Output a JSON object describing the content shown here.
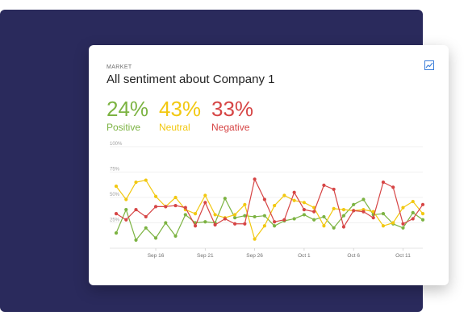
{
  "card": {
    "eyebrow": "MARKET",
    "title": "All sentiment about Company 1",
    "icon": "line-chart-icon"
  },
  "stats": [
    {
      "pct": "24%",
      "label": "Positive",
      "color": "#7cb342"
    },
    {
      "pct": "43%",
      "label": "Neutral",
      "color": "#f2c811"
    },
    {
      "pct": "33%",
      "label": "Negative",
      "color": "#d64545"
    }
  ],
  "chart_data": {
    "type": "line",
    "y_ticks": [
      "100%",
      "75%",
      "50%",
      "25%"
    ],
    "ylim": [
      0,
      100
    ],
    "x_ticks": [
      "Sep 16",
      "Sep 21",
      "Sep 26",
      "Oct 1",
      "Oct 6",
      "Oct 11"
    ],
    "x_tick_index": [
      4,
      9,
      14,
      19,
      24,
      29
    ],
    "grid": true,
    "series": [
      {
        "color": "#7cb342",
        "values": [
          15,
          38,
          8,
          20,
          10,
          25,
          12,
          33,
          25,
          26,
          25,
          49,
          30,
          32,
          31,
          32,
          22,
          27,
          29,
          33,
          28,
          31,
          20,
          32,
          43,
          48,
          33,
          34,
          24,
          20,
          35,
          28
        ]
      },
      {
        "color": "#f2c811",
        "values": [
          61,
          48,
          65,
          67,
          51,
          41,
          50,
          38,
          34,
          52,
          33,
          30,
          33,
          43,
          9,
          22,
          42,
          52,
          47,
          45,
          40,
          22,
          39,
          38,
          37,
          38,
          36,
          22,
          25,
          40,
          46,
          34
        ]
      },
      {
        "color": "#d64545",
        "values": [
          34,
          28,
          38,
          31,
          41,
          41,
          42,
          40,
          22,
          45,
          23,
          29,
          24,
          24,
          68,
          48,
          26,
          28,
          55,
          38,
          36,
          62,
          58,
          21,
          37,
          36,
          30,
          65,
          60,
          24,
          29,
          43
        ]
      }
    ]
  }
}
